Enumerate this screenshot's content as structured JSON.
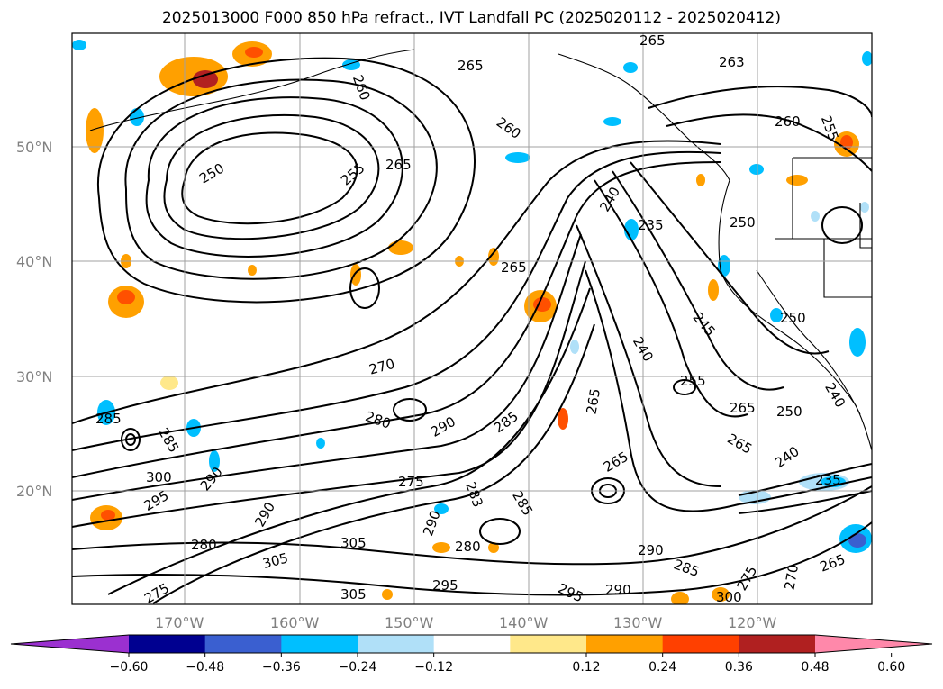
{
  "title": "2025013000 F000 850 hPa refract., IVT Landfall PC (2025020112 - 2025020412)",
  "map": {
    "lat_labels": [
      "50°N",
      "40°N",
      "30°N",
      "20°N"
    ],
    "lon_labels": [
      "170°W",
      "160°W",
      "150°W",
      "140°W",
      "130°W",
      "120°W"
    ],
    "contour_labels": [
      "265",
      "263",
      "265",
      "260",
      "260",
      "250",
      "255",
      "265",
      "250",
      "240",
      "235",
      "250",
      "265",
      "245",
      "250",
      "270",
      "240",
      "255",
      "265",
      "250",
      "240",
      "265",
      "280",
      "290",
      "285",
      "275",
      "285",
      "300",
      "295",
      "290",
      "280",
      "290",
      "305",
      "305",
      "305",
      "280",
      "295",
      "295",
      "290",
      "285",
      "275",
      "270",
      "265",
      "235",
      "300",
      "290",
      "290",
      "285",
      "283",
      "265",
      "260",
      "255",
      "285",
      "275",
      "240",
      "265"
    ],
    "colors": {
      "land_outline": "#000000",
      "grid": "#a0a0a0",
      "neg_strong": "#0000a0",
      "neg_mid": "#3a5fd0",
      "neg_light": "#00bfff",
      "neg_pale": "#b0e0f8",
      "pos_pale": "#ffe88a",
      "pos_mid": "#ffa000",
      "pos_strong": "#ff5000",
      "pos_dark": "#b22020"
    }
  },
  "colorbar": {
    "ticks": [
      "−0.60",
      "−0.48",
      "−0.36",
      "−0.24",
      "−0.12",
      "0.12",
      "0.24",
      "0.36",
      "0.48",
      "0.60"
    ],
    "colors": [
      "#9b30d0",
      "#000090",
      "#3a5fd0",
      "#00bfff",
      "#b0e0f8",
      "#ffffff",
      "#ffe88a",
      "#ffa000",
      "#ff4000",
      "#b02020",
      "#ff88aa"
    ]
  }
}
